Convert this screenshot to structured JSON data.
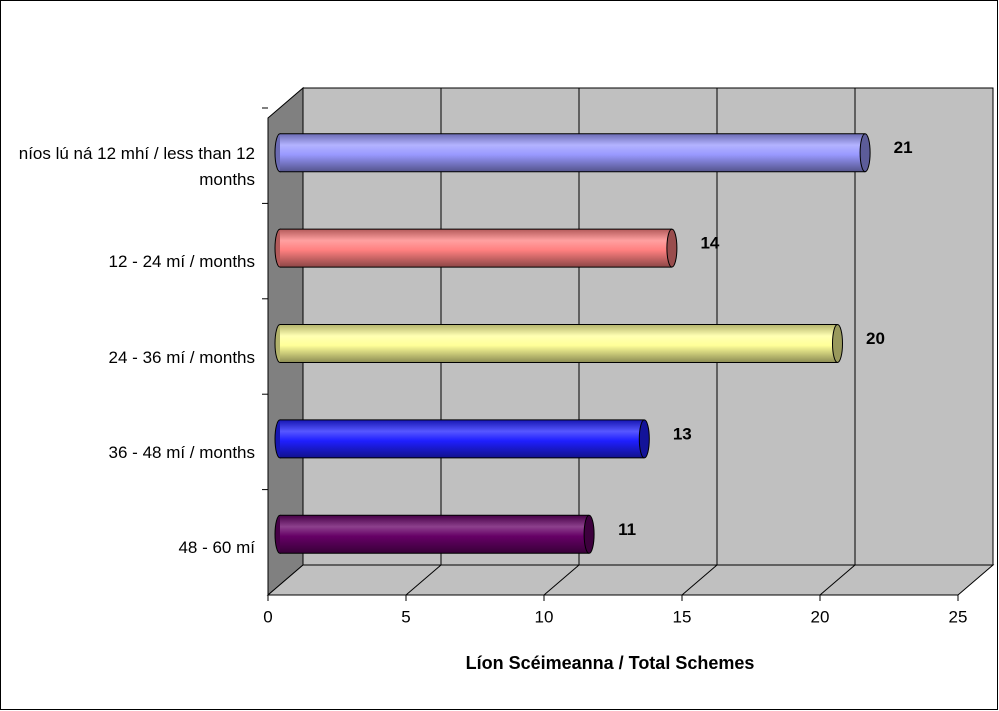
{
  "chart_data": {
    "type": "bar",
    "orientation": "horizontal",
    "style": "3d-cylinder",
    "x_label": "Líon Scéimeanna / Total Schemes",
    "categories": [
      "níos lú ná 12 mhí / less than 12 months",
      "12 - 24 mí / months",
      "24 - 36 mí / months",
      "36 - 48 mí / months",
      "48 - 60 mí"
    ],
    "values": [
      21,
      14,
      20,
      13,
      11
    ],
    "colors": [
      "#9999ff",
      "#ff8080",
      "#ffff99",
      "#1f1fff",
      "#660066"
    ],
    "xlim": [
      0,
      25
    ],
    "xticks": [
      0,
      5,
      10,
      15,
      20,
      25
    ],
    "grid": true
  }
}
